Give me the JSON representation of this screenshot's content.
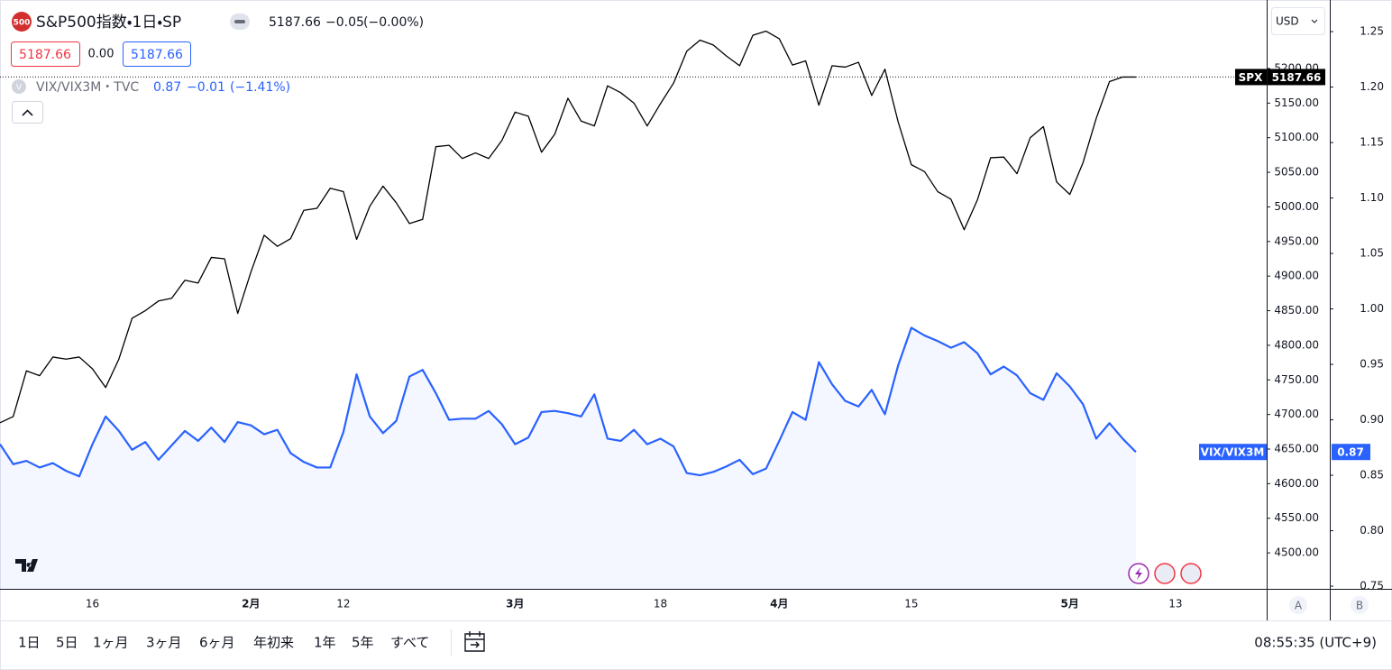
{
  "header": {
    "badge": "500",
    "title": "S&P500指数・1日・SP",
    "last": "5187.66",
    "change": "−0.05",
    "change_pct": "(−0.00%)",
    "bid": "5187.66",
    "spread": "0.00",
    "ask": "5187.66",
    "compare_badge": "V",
    "compare_name": "VIX/VIX3M・TVC",
    "compare_value": "0.87",
    "compare_change": "−0.01",
    "compare_change_pct": "(−1.41%)",
    "currency": "USD"
  },
  "chart_data": {
    "type": "line",
    "categories": [
      null,
      null,
      null,
      null,
      null,
      null,
      null,
      "16",
      null,
      null,
      null,
      null,
      null,
      null,
      null,
      null,
      null,
      null,
      null,
      "2月",
      null,
      null,
      null,
      null,
      null,
      null,
      "12",
      null,
      null,
      null,
      null,
      null,
      null,
      null,
      null,
      null,
      null,
      null,
      null,
      "3月",
      null,
      null,
      null,
      null,
      null,
      null,
      null,
      null,
      null,
      null,
      "18",
      null,
      null,
      null,
      null,
      null,
      null,
      null,
      null,
      "4月",
      null,
      null,
      null,
      null,
      null,
      null,
      null,
      null,
      null,
      "15",
      null,
      null,
      null,
      null,
      null,
      null,
      null,
      null,
      null,
      null,
      null,
      "5月",
      null,
      null,
      null,
      null,
      null,
      null,
      null,
      "13",
      null,
      null,
      null,
      null,
      null,
      null
    ],
    "series": [
      {
        "name": "SPX",
        "color": "#000000",
        "values": [
          4688,
          4697,
          4763,
          4756,
          4783,
          4780,
          4783,
          4766,
          4739,
          4780,
          4839,
          4850,
          4864,
          4868,
          4894,
          4890,
          4927,
          4925,
          4846,
          4906,
          4959,
          4943,
          4954,
          4995,
          4998,
          5027,
          5022,
          4953,
          5001,
          5030,
          5006,
          4976,
          4982,
          5087,
          5089,
          5070,
          5078,
          5070,
          5096,
          5137,
          5131,
          5079,
          5105,
          5157,
          5124,
          5117,
          5175,
          5165,
          5150,
          5117,
          5149,
          5179,
          5225,
          5241,
          5234,
          5218,
          5204,
          5248,
          5254,
          5243,
          5205,
          5211,
          5147,
          5204,
          5202,
          5209,
          5161,
          5199,
          5123,
          5061,
          5051,
          5022,
          5011,
          4967,
          5010,
          5071,
          5072,
          5048,
          5100,
          5116,
          5036,
          5018,
          5064,
          5128,
          5181,
          5187.7,
          5187.66,
          null,
          null,
          null,
          null,
          null,
          null,
          null,
          null,
          null
        ]
      },
      {
        "name": "VIX/VIX3M",
        "color": "#2962ff",
        "axis": "y2",
        "area": true,
        "values": [
          0.878,
          0.86,
          0.863,
          0.857,
          0.861,
          0.854,
          0.849,
          0.878,
          0.903,
          0.89,
          0.873,
          0.88,
          0.864,
          0.877,
          0.89,
          0.881,
          0.893,
          0.88,
          0.898,
          0.895,
          0.887,
          0.891,
          0.87,
          0.862,
          0.857,
          0.857,
          0.889,
          0.941,
          0.903,
          0.888,
          0.899,
          0.939,
          0.945,
          0.924,
          0.9,
          0.901,
          0.901,
          0.908,
          0.896,
          0.878,
          0.884,
          0.907,
          0.908,
          0.906,
          0.903,
          0.923,
          0.883,
          0.881,
          0.891,
          0.878,
          0.883,
          0.876,
          0.852,
          0.85,
          0.853,
          0.858,
          0.864,
          0.851,
          0.856,
          0.881,
          0.907,
          0.9,
          0.952,
          0.932,
          0.917,
          0.912,
          0.927,
          0.905,
          0.949,
          0.983,
          0.976,
          0.971,
          0.965,
          0.97,
          0.96,
          0.941,
          0.948,
          0.94,
          0.924,
          0.918,
          0.942,
          0.93,
          0.914,
          0.883,
          0.897,
          0.883,
          0.871,
          null,
          null,
          null,
          null,
          null,
          null,
          null,
          null,
          null
        ]
      }
    ],
    "ylim": [
      4448,
      5299
    ],
    "yticks": [
      {
        "value": 4500,
        "label": "4500.00"
      },
      {
        "value": 4550,
        "label": "4550.00"
      },
      {
        "value": 4600,
        "label": "4600.00"
      },
      {
        "value": 4650,
        "label": "4650.00"
      },
      {
        "value": 4700,
        "label": "4700.00"
      },
      {
        "value": 4750,
        "label": "4750.00"
      },
      {
        "value": 4800,
        "label": "4800.00"
      },
      {
        "value": 4850,
        "label": "4850.00"
      },
      {
        "value": 4900,
        "label": "4900.00"
      },
      {
        "value": 4950,
        "label": "4950.00"
      },
      {
        "value": 5000,
        "label": "5000.00"
      },
      {
        "value": 5050,
        "label": "5050.00"
      },
      {
        "value": 5100,
        "label": "5100.00"
      },
      {
        "value": 5150,
        "label": "5150.00"
      },
      {
        "value": 5200,
        "label": "5200.00"
      }
    ],
    "y2lim": [
      0.7476,
      1.2785
    ],
    "y2ticks": [
      0.75,
      {
        "value": 0.8,
        "label": "0.80"
      },
      0.85,
      {
        "value": 0.9,
        "label": "0.90"
      },
      0.95,
      {
        "value": 1,
        "label": "1.00"
      },
      1.05,
      {
        "value": 1.1,
        "label": "1.10"
      },
      1.15,
      {
        "value": 1.2,
        "label": "1.20"
      },
      1.25
    ],
    "y_axis_button": "A",
    "y2_axis_button": "B",
    "grid": false
  },
  "toolbar": {
    "ranges": [
      "1日",
      "5日",
      "1ヶ月",
      "3ヶ月",
      "6ヶ月",
      "年初来",
      "1年",
      "5年",
      "すべて"
    ],
    "clock": "08:55:35 (UTC+9)"
  }
}
